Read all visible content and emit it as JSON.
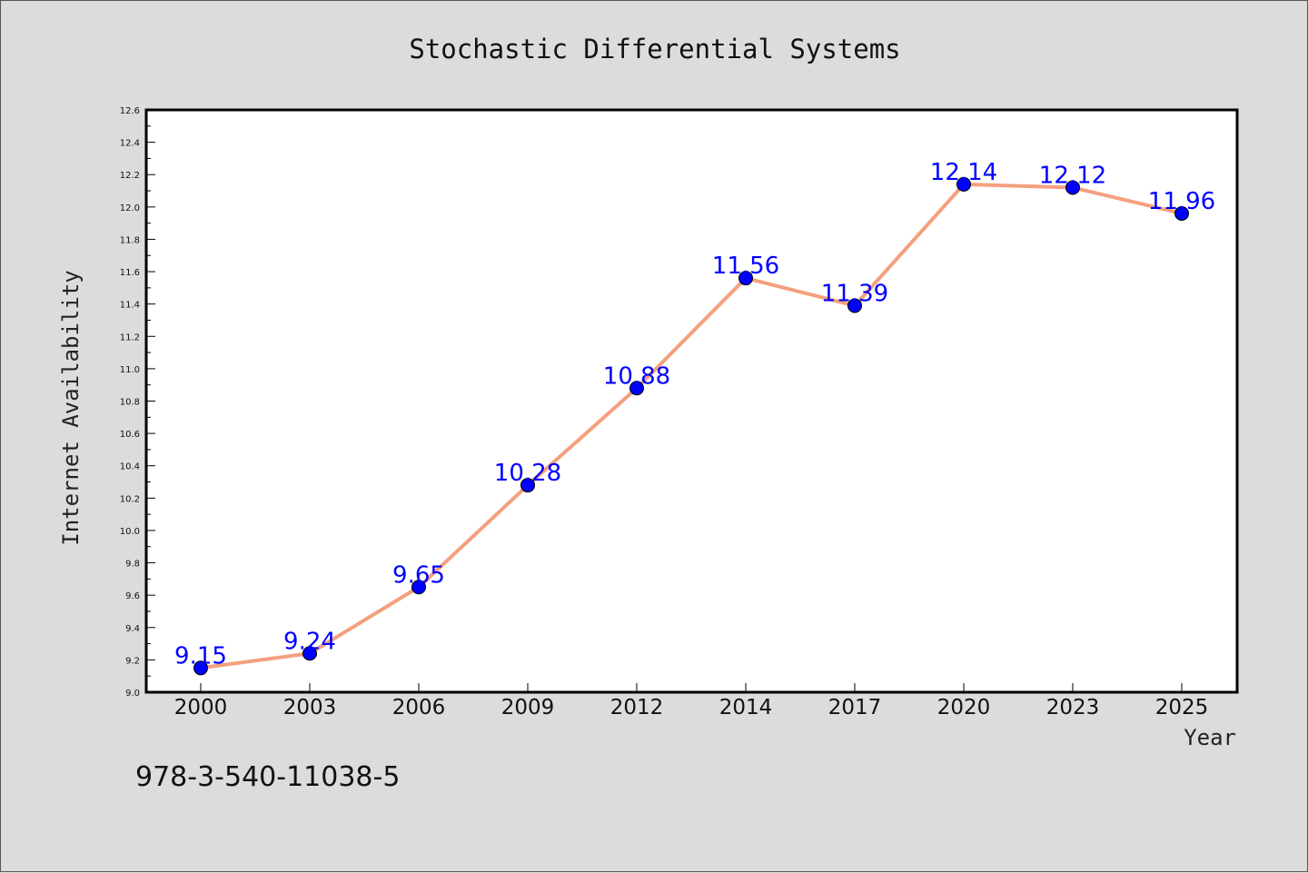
{
  "chart_data": {
    "type": "line",
    "title": "Stochastic Differential Systems",
    "xlabel": "Year",
    "ylabel": "Internet Availability",
    "categories": [
      "2000",
      "2003",
      "2006",
      "2009",
      "2012",
      "2014",
      "2017",
      "2020",
      "2023",
      "2025"
    ],
    "values": [
      9.15,
      9.24,
      9.65,
      10.28,
      10.88,
      11.56,
      11.39,
      12.14,
      12.12,
      11.96
    ],
    "data_labels": [
      "9.15",
      "9.24",
      "9.65",
      "10.28",
      "10.88",
      "11.56",
      "11.39",
      "12.14",
      "12.12",
      "11.96"
    ],
    "ylim": [
      9.0,
      12.6
    ],
    "yticks": [
      "9.0",
      "9.2",
      "9.4",
      "9.6",
      "9.8",
      "10.0",
      "10.2",
      "10.4",
      "10.6",
      "10.8",
      "11.0",
      "11.2",
      "11.4",
      "11.6",
      "11.8",
      "12.0",
      "12.2",
      "12.4",
      "12.6"
    ],
    "grid": false,
    "legend": "none",
    "line_color": "#f4a07e",
    "marker_color": "#0000ff",
    "label_color": "#0000ff",
    "annotation": "978-3-540-11038-5"
  }
}
